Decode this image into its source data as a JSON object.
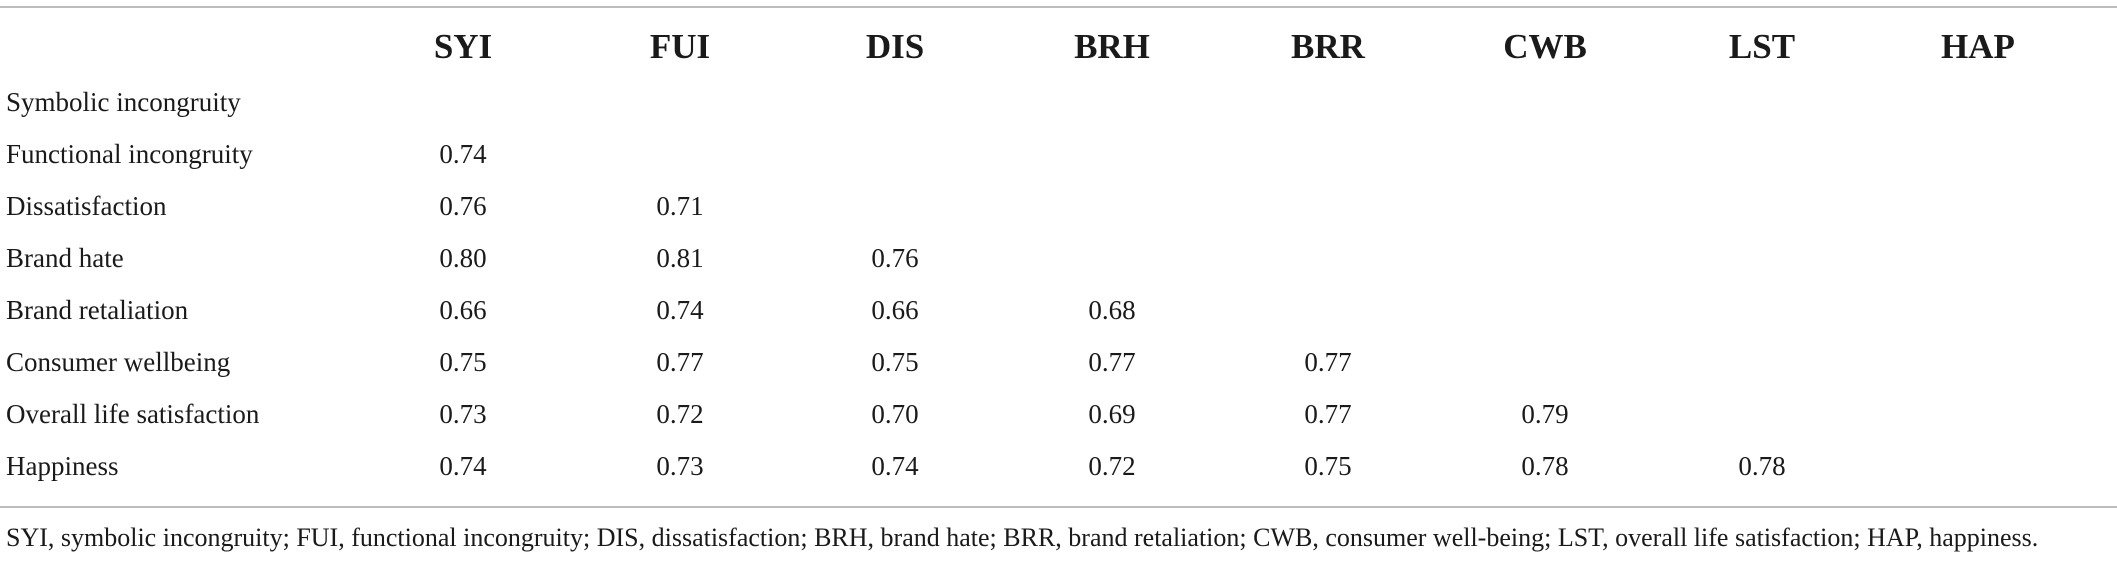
{
  "table": {
    "columns": [
      "SYI",
      "FUI",
      "DIS",
      "BRH",
      "BRR",
      "CWB",
      "LST",
      "HAP"
    ],
    "rows": [
      {
        "label": "Symbolic incongruity",
        "values": [
          "",
          "",
          "",
          "",
          "",
          "",
          "",
          ""
        ]
      },
      {
        "label": "Functional incongruity",
        "values": [
          "0.74",
          "",
          "",
          "",
          "",
          "",
          "",
          ""
        ]
      },
      {
        "label": "Dissatisfaction",
        "values": [
          "0.76",
          "0.71",
          "",
          "",
          "",
          "",
          "",
          ""
        ]
      },
      {
        "label": "Brand hate",
        "values": [
          "0.80",
          "0.81",
          "0.76",
          "",
          "",
          "",
          "",
          ""
        ]
      },
      {
        "label": "Brand retaliation",
        "values": [
          "0.66",
          "0.74",
          "0.66",
          "0.68",
          "",
          "",
          "",
          ""
        ]
      },
      {
        "label": "Consumer wellbeing",
        "values": [
          "0.75",
          "0.77",
          "0.75",
          "0.77",
          "0.77",
          "",
          "",
          ""
        ]
      },
      {
        "label": "Overall life satisfaction",
        "values": [
          "0.73",
          "0.72",
          "0.70",
          "0.69",
          "0.77",
          "0.79",
          "",
          ""
        ]
      },
      {
        "label": "Happiness",
        "values": [
          "0.74",
          "0.73",
          "0.74",
          "0.72",
          "0.75",
          "0.78",
          "0.78",
          ""
        ]
      }
    ],
    "footnote": "SYI, symbolic incongruity; FUI, functional incongruity; DIS, dissatisfaction; BRH, brand hate; BRR, brand retaliation; CWB, consumer well-being; LST, overall life satisfaction; HAP, happiness."
  }
}
